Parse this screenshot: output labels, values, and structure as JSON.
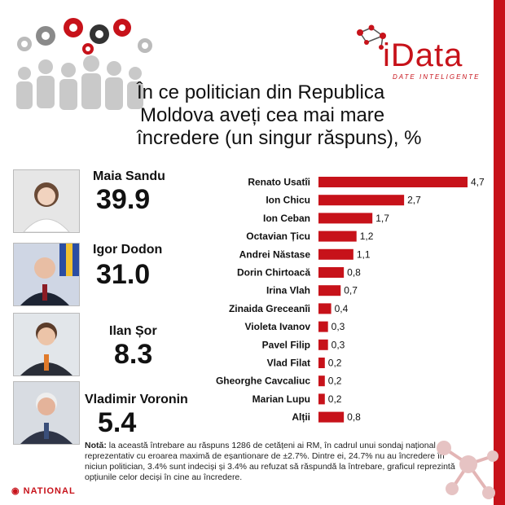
{
  "brand": {
    "name": "iData",
    "tagline": "DATE INTELIGENTE"
  },
  "title_lines": [
    "În ce politician din Republica",
    "Moldova aveți cea mai mare",
    "încredere (un singur răspuns), %"
  ],
  "top_candidates": [
    {
      "name": "Maia Sandu",
      "value": "39.9"
    },
    {
      "name": "Igor Dodon",
      "value": "31.0"
    },
    {
      "name": "Ilan Șor",
      "value": "8.3"
    },
    {
      "name": "Vladimir Voronin",
      "value": "5.4"
    }
  ],
  "colors": {
    "bar": "#c7121a",
    "accent": "#c7121a"
  },
  "chart_data": {
    "type": "bar",
    "orientation": "horizontal",
    "categories": [
      "Renato Usatîi",
      "Ion Chicu",
      "Ion Ceban",
      "Octavian Țicu",
      "Andrei Năstase",
      "Dorin Chirtoacă",
      "Irina Vlah",
      "Zinaida Greceanîi",
      "Violeta Ivanov",
      "Pavel Filip",
      "Vlad Filat",
      "Gheorghe Cavcaliuc",
      "Marian Lupu",
      "Alții"
    ],
    "values": [
      4.7,
      2.7,
      1.7,
      1.2,
      1.1,
      0.8,
      0.7,
      0.4,
      0.3,
      0.3,
      0.2,
      0.2,
      0.2,
      0.8
    ],
    "value_labels": [
      "4,7",
      "2,7",
      "1,7",
      "1,2",
      "1,1",
      "0,8",
      "0,7",
      "0,4",
      "0,3",
      "0,3",
      "0,2",
      "0,2",
      "0,2",
      "0,8"
    ],
    "xlim": [
      0,
      4.7
    ],
    "grid": false
  },
  "note": {
    "label": "Notă:",
    "text": " la această întrebare au răspuns 1286 de cetățeni ai RM, în cadrul unui sondaj național reprezentativ cu eroarea maximă de eșantionare de ±2.7%. Dintre ei, 24.7% nu au încredere în niciun politician, 3.4% sunt indeciși și 3.4% au refuzat să răspundă la întrebare, graficul reprezintă opțiunile celor deciși în cine au încredere."
  },
  "footer": {
    "logo_text": "NATIONAL"
  }
}
